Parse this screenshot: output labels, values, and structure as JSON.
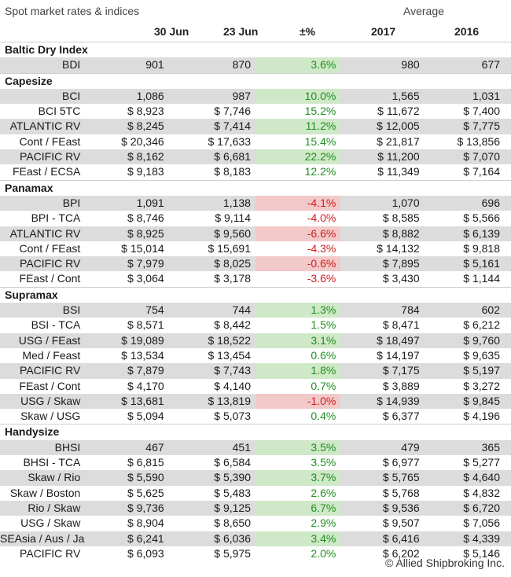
{
  "header": {
    "title": "Spot market rates & indices",
    "average_label": "Average",
    "columns": [
      "30 Jun",
      "23 Jun",
      "±%",
      "2017",
      "2016"
    ]
  },
  "sections": [
    {
      "name": "Baltic Dry Index",
      "rows": [
        {
          "label": "BDI",
          "c30": "901",
          "c23": "870",
          "pct": "3.6%",
          "y2017": "980",
          "y2016": "677",
          "sign": "pos"
        }
      ]
    },
    {
      "name": "Capesize",
      "rows": [
        {
          "label": "BCI",
          "c30": "1,086",
          "c23": "987",
          "pct": "10.0%",
          "y2017": "1,565",
          "y2016": "1,031",
          "sign": "pos"
        },
        {
          "label": "BCI 5TC",
          "c30": "$ 8,923",
          "c23": "$ 7,746",
          "pct": "15.2%",
          "y2017": "$ 11,672",
          "y2016": "$ 7,400",
          "sign": "pos"
        },
        {
          "label": "ATLANTIC RV",
          "c30": "$ 8,245",
          "c23": "$ 7,414",
          "pct": "11.2%",
          "y2017": "$ 12,005",
          "y2016": "$ 7,775",
          "sign": "pos"
        },
        {
          "label": "Cont / FEast",
          "c30": "$ 20,346",
          "c23": "$ 17,633",
          "pct": "15.4%",
          "y2017": "$ 21,817",
          "y2016": "$ 13,856",
          "sign": "pos"
        },
        {
          "label": "PACIFIC RV",
          "c30": "$ 8,162",
          "c23": "$ 6,681",
          "pct": "22.2%",
          "y2017": "$ 11,200",
          "y2016": "$ 7,070",
          "sign": "pos"
        },
        {
          "label": "FEast / ECSA",
          "c30": "$ 9,183",
          "c23": "$ 8,183",
          "pct": "12.2%",
          "y2017": "$ 11,349",
          "y2016": "$ 7,164",
          "sign": "pos"
        }
      ]
    },
    {
      "name": "Panamax",
      "rows": [
        {
          "label": "BPI",
          "c30": "1,091",
          "c23": "1,138",
          "pct": "-4.1%",
          "y2017": "1,070",
          "y2016": "696",
          "sign": "neg"
        },
        {
          "label": "BPI - TCA",
          "c30": "$ 8,746",
          "c23": "$ 9,114",
          "pct": "-4.0%",
          "y2017": "$ 8,585",
          "y2016": "$ 5,566",
          "sign": "neg"
        },
        {
          "label": "ATLANTIC RV",
          "c30": "$ 8,925",
          "c23": "$ 9,560",
          "pct": "-6.6%",
          "y2017": "$ 8,882",
          "y2016": "$ 6,139",
          "sign": "neg"
        },
        {
          "label": "Cont / FEast",
          "c30": "$ 15,014",
          "c23": "$ 15,691",
          "pct": "-4.3%",
          "y2017": "$ 14,132",
          "y2016": "$ 9,818",
          "sign": "neg"
        },
        {
          "label": "PACIFIC RV",
          "c30": "$ 7,979",
          "c23": "$ 8,025",
          "pct": "-0.6%",
          "y2017": "$ 7,895",
          "y2016": "$ 5,161",
          "sign": "neg"
        },
        {
          "label": "FEast / Cont",
          "c30": "$ 3,064",
          "c23": "$ 3,178",
          "pct": "-3.6%",
          "y2017": "$ 3,430",
          "y2016": "$ 1,144",
          "sign": "neg"
        }
      ]
    },
    {
      "name": "Supramax",
      "rows": [
        {
          "label": "BSI",
          "c30": "754",
          "c23": "744",
          "pct": "1.3%",
          "y2017": "784",
          "y2016": "602",
          "sign": "pos"
        },
        {
          "label": "BSI - TCA",
          "c30": "$ 8,571",
          "c23": "$ 8,442",
          "pct": "1.5%",
          "y2017": "$ 8,471",
          "y2016": "$ 6,212",
          "sign": "pos"
        },
        {
          "label": "USG / FEast",
          "c30": "$ 19,089",
          "c23": "$ 18,522",
          "pct": "3.1%",
          "y2017": "$ 18,497",
          "y2016": "$ 9,760",
          "sign": "pos"
        },
        {
          "label": "Med / Feast",
          "c30": "$ 13,534",
          "c23": "$ 13,454",
          "pct": "0.6%",
          "y2017": "$ 14,197",
          "y2016": "$ 9,635",
          "sign": "pos"
        },
        {
          "label": "PACIFIC RV",
          "c30": "$ 7,879",
          "c23": "$ 7,743",
          "pct": "1.8%",
          "y2017": "$ 7,175",
          "y2016": "$ 5,197",
          "sign": "pos"
        },
        {
          "label": "FEast / Cont",
          "c30": "$ 4,170",
          "c23": "$ 4,140",
          "pct": "0.7%",
          "y2017": "$ 3,889",
          "y2016": "$ 3,272",
          "sign": "pos"
        },
        {
          "label": "USG / Skaw",
          "c30": "$ 13,681",
          "c23": "$ 13,819",
          "pct": "-1.0%",
          "y2017": "$ 14,939",
          "y2016": "$ 9,845",
          "sign": "neg"
        },
        {
          "label": "Skaw / USG",
          "c30": "$ 5,094",
          "c23": "$ 5,073",
          "pct": "0.4%",
          "y2017": "$ 6,377",
          "y2016": "$ 4,196",
          "sign": "pos"
        }
      ]
    },
    {
      "name": "Handysize",
      "rows": [
        {
          "label": "BHSI",
          "c30": "467",
          "c23": "451",
          "pct": "3.5%",
          "y2017": "479",
          "y2016": "365",
          "sign": "pos"
        },
        {
          "label": "BHSI - TCA",
          "c30": "$ 6,815",
          "c23": "$ 6,584",
          "pct": "3.5%",
          "y2017": "$ 6,977",
          "y2016": "$ 5,277",
          "sign": "pos"
        },
        {
          "label": "Skaw / Rio",
          "c30": "$ 5,590",
          "c23": "$ 5,390",
          "pct": "3.7%",
          "y2017": "$ 5,765",
          "y2016": "$ 4,640",
          "sign": "pos"
        },
        {
          "label": "Skaw / Boston",
          "c30": "$ 5,625",
          "c23": "$ 5,483",
          "pct": "2.6%",
          "y2017": "$ 5,768",
          "y2016": "$ 4,832",
          "sign": "pos"
        },
        {
          "label": "Rio / Skaw",
          "c30": "$ 9,736",
          "c23": "$ 9,125",
          "pct": "6.7%",
          "y2017": "$ 9,536",
          "y2016": "$ 6,720",
          "sign": "pos"
        },
        {
          "label": "USG / Skaw",
          "c30": "$ 8,904",
          "c23": "$ 8,650",
          "pct": "2.9%",
          "y2017": "$ 9,507",
          "y2016": "$ 7,056",
          "sign": "pos"
        },
        {
          "label": "SEAsia / Aus / Jap",
          "c30": "$ 6,241",
          "c23": "$ 6,036",
          "pct": "3.4%",
          "y2017": "$ 6,416",
          "y2016": "$ 4,339",
          "sign": "pos"
        },
        {
          "label": "PACIFIC RV",
          "c30": "$ 6,093",
          "c23": "$ 5,975",
          "pct": "2.0%",
          "y2017": "$ 6,202",
          "y2016": "$ 5,146",
          "sign": "pos"
        }
      ]
    }
  ],
  "footer": "© Allied Shipbroking Inc.",
  "colors": {
    "positive": "#1f8f1f",
    "negative": "#d11b1b",
    "shade": "#dcdcdc"
  }
}
